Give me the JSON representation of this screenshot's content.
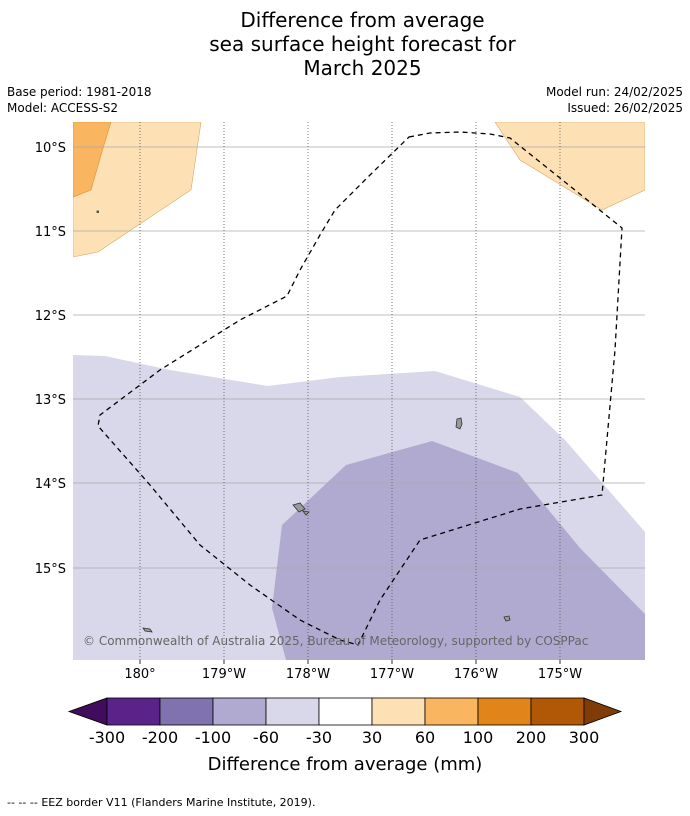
{
  "title": {
    "line1": "Difference from average",
    "line2": "sea surface height forecast for",
    "line3": "March 2025"
  },
  "meta": {
    "base_period": "Base period: 1981-2018",
    "model": "Model: ACCESS-S2",
    "model_run": "Model run: 24/02/2025",
    "issued": "Issued: 26/02/2025"
  },
  "map": {
    "lat_labels": [
      "10°S",
      "11°S",
      "12°S",
      "13°S",
      "14°S",
      "15°S"
    ],
    "lon_labels": [
      "180°",
      "179°W",
      "178°W",
      "177°W",
      "176°W",
      "175°W"
    ],
    "copyright": "© Commonwealth of Australia 2025, Bureau of Meteorology, supported by COSPPac",
    "colors": {
      "grid": "#999999",
      "land": "#999999",
      "eez": "#000000"
    }
  },
  "colorbar": {
    "label": "Difference from average (mm)",
    "ticks": [
      "-300",
      "-200",
      "-100",
      "-60",
      "-30",
      "30",
      "60",
      "100",
      "200",
      "300"
    ],
    "colors": [
      "#3f0d5c",
      "#5a2389",
      "#8072ae",
      "#b0aad1",
      "#d8d8ea",
      "#ffffff",
      "#fde1b5",
      "#f9b55f",
      "#e18419",
      "#b15806",
      "#7f3b08"
    ]
  },
  "footer": {
    "eez_marker": "--  --  --",
    "eez_text": "EEZ border V11 (Flanders Marine Institute, 2019)."
  }
}
